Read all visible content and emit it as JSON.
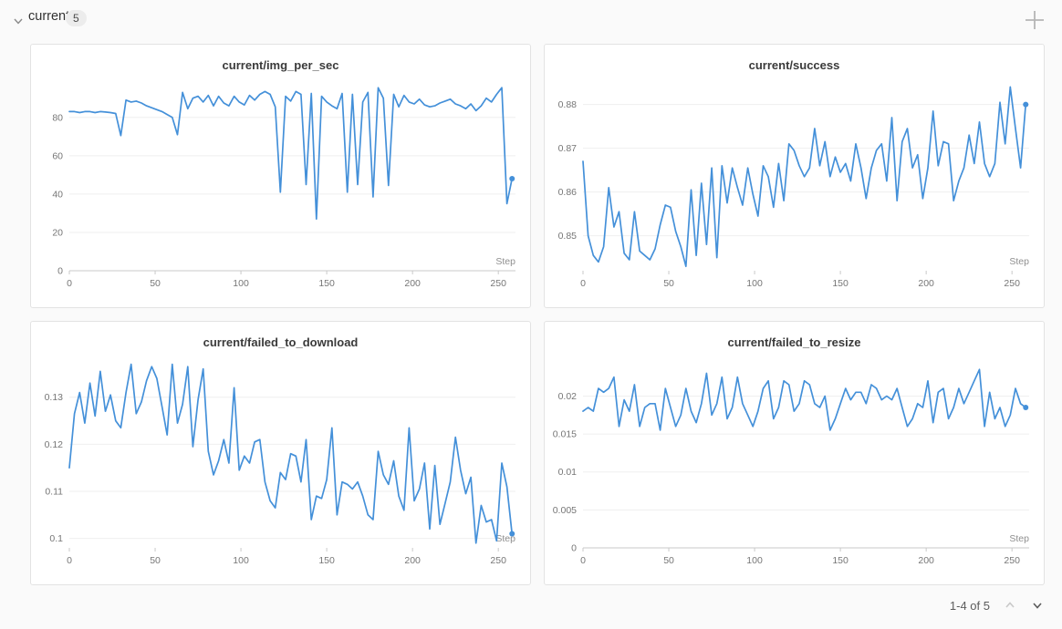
{
  "header": {
    "title": "current",
    "badge": "5",
    "collapse_icon": "chevron-down-icon",
    "add_icon": "plus-icon"
  },
  "pagination": {
    "label": "1-4 of 5",
    "up_icon": "chevron-up-icon",
    "down_icon": "chevron-down-icon"
  },
  "colors": {
    "line": "#4490d9",
    "grid": "#efefef",
    "axis": "#c9c9c9",
    "tick_text": "#767676",
    "step_label": "#8f8f8f",
    "title_text": "#3a3a3a"
  },
  "chart_data": [
    {
      "type": "line",
      "title": "current/img_per_sec",
      "xlabel": "Step",
      "x_ticks": [
        0,
        50,
        100,
        150,
        200,
        250
      ],
      "y_ticks": [
        0,
        20,
        40,
        60,
        80
      ],
      "xlim": [
        0,
        260
      ],
      "ylim": [
        0,
        97
      ],
      "x_step": 3,
      "end_dot": true,
      "values": [
        83,
        83,
        82.5,
        83,
        83,
        82.5,
        83,
        82.8,
        82.5,
        82,
        70.5,
        89,
        88,
        88.5,
        87.5,
        86,
        85,
        84,
        83,
        81.5,
        80,
        71,
        93,
        84.5,
        90,
        91,
        88,
        91.5,
        86,
        91,
        87.5,
        86,
        91,
        88,
        86.5,
        91.5,
        89,
        92,
        93.5,
        92,
        85.5,
        41,
        91,
        88.5,
        93.5,
        92,
        45,
        92.5,
        27,
        91,
        88,
        86,
        84.5,
        92.5,
        41,
        92,
        45,
        88,
        93,
        38.5,
        95.5,
        90,
        44.5,
        92,
        85.5,
        91.5,
        88,
        87,
        89.5,
        86.5,
        85.5,
        86,
        87.5,
        88.5,
        89.5,
        87,
        86,
        84.5,
        87,
        83.5,
        86,
        90,
        88,
        92,
        95.5,
        35,
        48
      ]
    },
    {
      "type": "line",
      "title": "current/success",
      "xlabel": "Step",
      "x_ticks": [
        0,
        50,
        100,
        150,
        200,
        250
      ],
      "y_ticks": [
        0.85,
        0.86,
        0.87,
        0.88
      ],
      "xlim": [
        0,
        260
      ],
      "ylim": [
        0.842,
        0.8845
      ],
      "x_step": 3,
      "end_dot": true,
      "values": [
        0.867,
        0.85,
        0.8455,
        0.844,
        0.8475,
        0.861,
        0.852,
        0.8555,
        0.846,
        0.8445,
        0.8555,
        0.8465,
        0.8455,
        0.8445,
        0.847,
        0.8525,
        0.857,
        0.8565,
        0.851,
        0.8475,
        0.843,
        0.8605,
        0.8455,
        0.862,
        0.848,
        0.8655,
        0.845,
        0.866,
        0.8575,
        0.8655,
        0.861,
        0.857,
        0.8655,
        0.8595,
        0.8545,
        0.866,
        0.8635,
        0.8565,
        0.8665,
        0.858,
        0.871,
        0.8695,
        0.866,
        0.8635,
        0.8655,
        0.8745,
        0.866,
        0.8715,
        0.8635,
        0.868,
        0.8645,
        0.8665,
        0.8625,
        0.871,
        0.8655,
        0.8585,
        0.8655,
        0.8695,
        0.871,
        0.8625,
        0.877,
        0.858,
        0.8715,
        0.8745,
        0.8655,
        0.8685,
        0.8585,
        0.8655,
        0.8785,
        0.866,
        0.8715,
        0.871,
        0.858,
        0.8625,
        0.8655,
        0.873,
        0.8665,
        0.876,
        0.8665,
        0.8635,
        0.8665,
        0.8805,
        0.871,
        0.884,
        0.8745,
        0.8655,
        0.88
      ]
    },
    {
      "type": "line",
      "title": "current/failed_to_download",
      "xlabel": "Step",
      "x_ticks": [
        0,
        50,
        100,
        150,
        200,
        250
      ],
      "y_ticks": [
        0.1,
        0.11,
        0.12,
        0.13
      ],
      "xlim": [
        0,
        260
      ],
      "ylim": [
        0.098,
        0.1375
      ],
      "x_step": 3,
      "end_dot": true,
      "values": [
        0.115,
        0.1265,
        0.131,
        0.1245,
        0.133,
        0.126,
        0.1355,
        0.127,
        0.1305,
        0.125,
        0.1235,
        0.131,
        0.137,
        0.1265,
        0.129,
        0.1335,
        0.1365,
        0.134,
        0.128,
        0.122,
        0.137,
        0.1245,
        0.1285,
        0.1365,
        0.1195,
        0.1295,
        0.136,
        0.1185,
        0.1135,
        0.1165,
        0.121,
        0.116,
        0.132,
        0.1145,
        0.1175,
        0.116,
        0.1205,
        0.121,
        0.112,
        0.108,
        0.1065,
        0.114,
        0.1125,
        0.118,
        0.1175,
        0.112,
        0.121,
        0.104,
        0.109,
        0.1085,
        0.1125,
        0.1235,
        0.105,
        0.112,
        0.1115,
        0.1105,
        0.112,
        0.109,
        0.105,
        0.104,
        0.1185,
        0.1135,
        0.1115,
        0.1165,
        0.109,
        0.106,
        0.1235,
        0.108,
        0.1105,
        0.116,
        0.102,
        0.1155,
        0.103,
        0.1075,
        0.112,
        0.1215,
        0.1145,
        0.1095,
        0.113,
        0.099,
        0.107,
        0.1035,
        0.104,
        0.0995,
        0.116,
        0.111,
        0.101
      ]
    },
    {
      "type": "line",
      "title": "current/failed_to_resize",
      "xlabel": "Step",
      "x_ticks": [
        0,
        50,
        100,
        150,
        200,
        250
      ],
      "y_ticks": [
        0,
        0.005,
        0.01,
        0.015,
        0.02
      ],
      "xlim": [
        0,
        260
      ],
      "ylim": [
        0,
        0.0245
      ],
      "x_step": 3,
      "end_dot": true,
      "values": [
        0.018,
        0.0185,
        0.018,
        0.021,
        0.0205,
        0.021,
        0.0225,
        0.016,
        0.0195,
        0.018,
        0.0215,
        0.016,
        0.0185,
        0.019,
        0.019,
        0.0155,
        0.021,
        0.0185,
        0.016,
        0.0175,
        0.021,
        0.018,
        0.0165,
        0.019,
        0.023,
        0.0175,
        0.019,
        0.0225,
        0.017,
        0.0185,
        0.0225,
        0.019,
        0.0175,
        0.016,
        0.018,
        0.021,
        0.022,
        0.017,
        0.0185,
        0.022,
        0.0215,
        0.018,
        0.019,
        0.022,
        0.0215,
        0.019,
        0.0185,
        0.02,
        0.0155,
        0.017,
        0.019,
        0.021,
        0.0195,
        0.0205,
        0.0205,
        0.019,
        0.0215,
        0.021,
        0.0195,
        0.02,
        0.0195,
        0.021,
        0.0185,
        0.016,
        0.017,
        0.019,
        0.0185,
        0.022,
        0.0165,
        0.0205,
        0.021,
        0.017,
        0.0185,
        0.021,
        0.019,
        0.0205,
        0.022,
        0.0235,
        0.016,
        0.0205,
        0.017,
        0.0185,
        0.016,
        0.0175,
        0.021,
        0.019,
        0.0185
      ]
    }
  ]
}
